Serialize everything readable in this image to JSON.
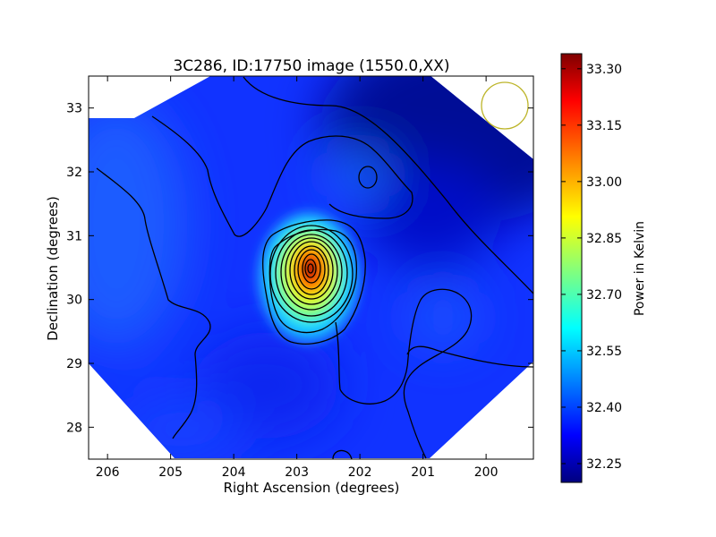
{
  "chart_data": {
    "type": "heatmap",
    "title": "3C286, ID:17750 image (1550.0,XX)",
    "xlabel": "Right Ascension (degrees)",
    "ylabel": "Declination (degrees)",
    "xlim": [
      206.3,
      199.25
    ],
    "ylim": [
      27.5,
      33.5
    ],
    "x_ticks": [
      206,
      205,
      204,
      203,
      202,
      201,
      200
    ],
    "y_ticks": [
      28,
      29,
      30,
      31,
      32,
      33
    ],
    "colorbar": {
      "label": "Power in Kelvin",
      "range": [
        32.2,
        33.34
      ],
      "ticks": [
        "32.25",
        "32.40",
        "32.55",
        "32.70",
        "32.85",
        "33.00",
        "33.15",
        "33.30"
      ],
      "colormap": "jet"
    },
    "sources": [
      {
        "ra": 202.75,
        "dec": 30.45,
        "peak": 33.34
      },
      {
        "ra": 201.9,
        "dec": 31.9,
        "peak": 32.5
      }
    ],
    "beam": {
      "ra": 199.7,
      "dec": 33.05,
      "color": "#bdb52a"
    },
    "grid": false
  }
}
